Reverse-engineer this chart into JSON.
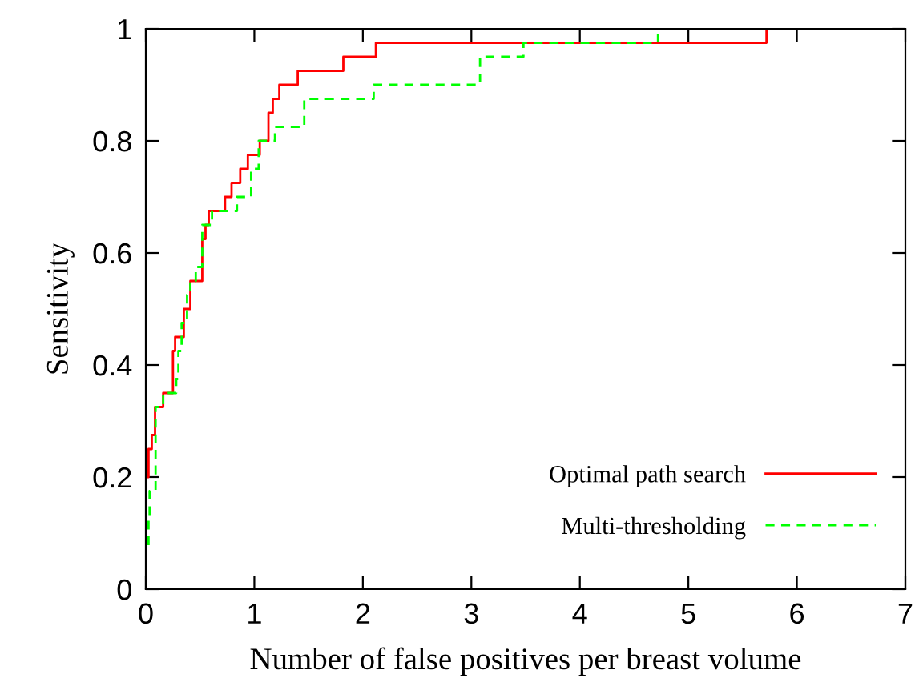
{
  "chart_data": {
    "type": "step",
    "xlabel": "Number of false positives per breast volume",
    "ylabel": "Sensitivity",
    "xlim": [
      0,
      7
    ],
    "ylim": [
      0,
      1
    ],
    "xticks": [
      0,
      1,
      2,
      3,
      4,
      5,
      6,
      7
    ],
    "yticks": [
      0,
      0.2,
      0.4,
      0.6,
      0.8,
      1
    ],
    "grid": false,
    "legend": "bottom right",
    "marker": "none",
    "series": [
      {
        "name": "Optimal path search",
        "color": "#ff0000",
        "line_style": "solid",
        "x": [
          0,
          0,
          0.025,
          0.055,
          0.085,
          0.16,
          0.25,
          0.27,
          0.35,
          0.41,
          0.52,
          0.55,
          0.58,
          0.73,
          0.79,
          0.87,
          0.94,
          1.05,
          1.13,
          1.17,
          1.23,
          1.4,
          1.82,
          2.12,
          5.72
        ],
        "values": [
          0,
          0.2,
          0.25,
          0.275,
          0.325,
          0.35,
          0.425,
          0.45,
          0.5,
          0.55,
          0.625,
          0.65,
          0.675,
          0.7,
          0.725,
          0.75,
          0.775,
          0.8,
          0.85,
          0.875,
          0.9,
          0.925,
          0.95,
          0.975,
          1.0
        ]
      },
      {
        "name": "Multi-thresholding",
        "color": "#00ff00",
        "line_style": "dashed",
        "x": [
          0,
          0,
          0.025,
          0.035,
          0.09,
          0.16,
          0.28,
          0.3,
          0.33,
          0.38,
          0.41,
          0.46,
          0.52,
          0.61,
          0.84,
          0.97,
          1.04,
          1.19,
          1.46,
          2.1,
          3.08,
          3.48,
          4.72
        ],
        "values": [
          0,
          0.075,
          0.125,
          0.175,
          0.325,
          0.35,
          0.375,
          0.425,
          0.475,
          0.525,
          0.55,
          0.575,
          0.65,
          0.675,
          0.7,
          0.75,
          0.8,
          0.825,
          0.875,
          0.9,
          0.95,
          0.975,
          1.0
        ]
      }
    ]
  }
}
